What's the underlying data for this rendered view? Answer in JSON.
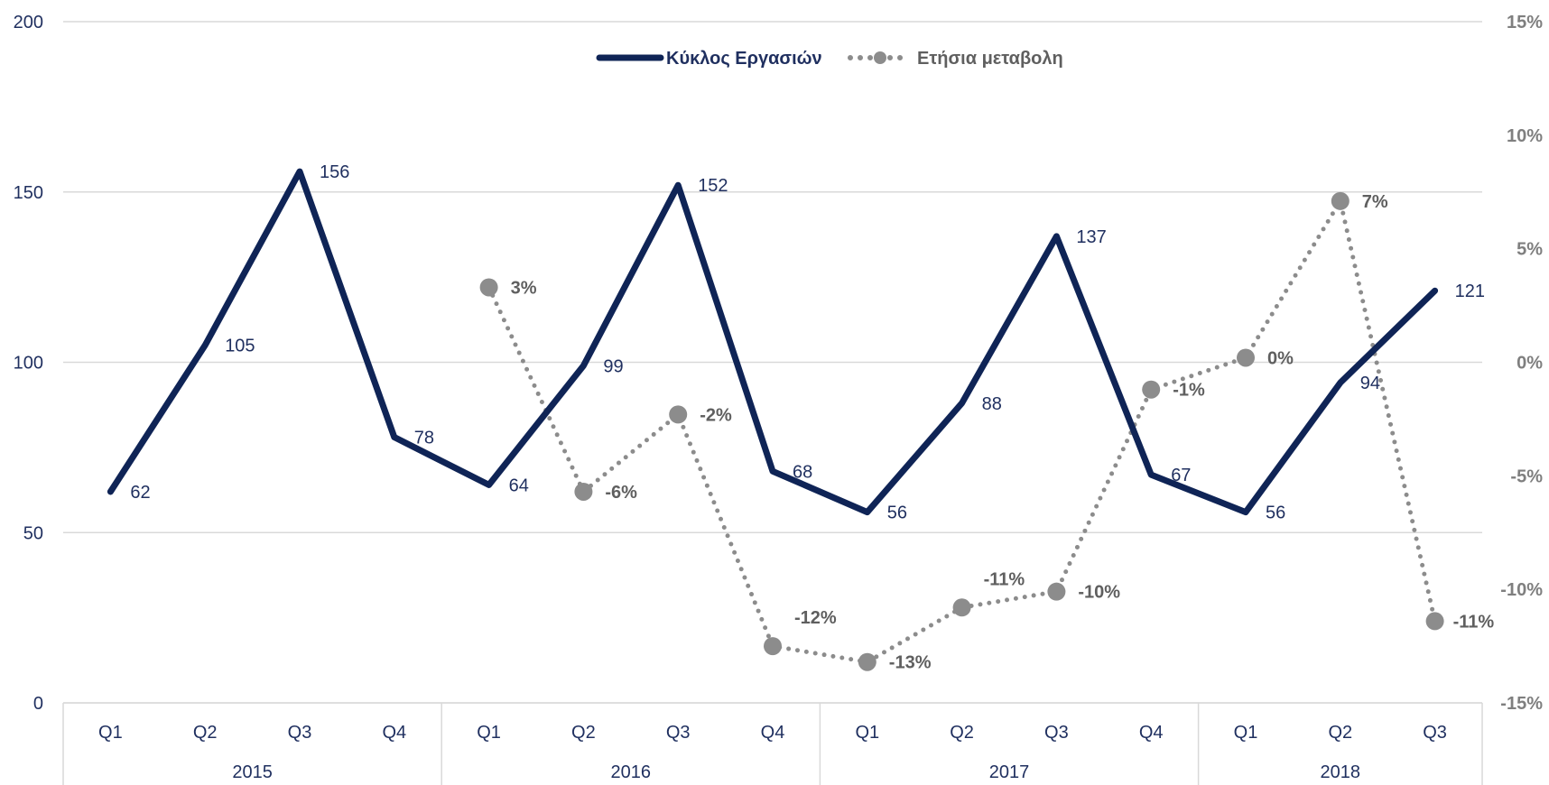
{
  "chart_data": {
    "type": "line",
    "categories": [
      "Q1",
      "Q2",
      "Q3",
      "Q4",
      "Q1",
      "Q2",
      "Q3",
      "Q4",
      "Q1",
      "Q2",
      "Q3",
      "Q4",
      "Q1",
      "Q2",
      "Q3"
    ],
    "years": [
      {
        "label": "2015",
        "quarters": 4
      },
      {
        "label": "2016",
        "quarters": 4
      },
      {
        "label": "2017",
        "quarters": 4
      },
      {
        "label": "2018",
        "quarters": 3
      }
    ],
    "series": [
      {
        "name": "Κύκλος Εργασιών",
        "axis": "left",
        "style": "solid",
        "color": "#0f2456",
        "values": [
          62,
          105,
          156,
          78,
          64,
          99,
          152,
          68,
          56,
          88,
          137,
          67,
          56,
          94,
          121
        ],
        "labels": [
          "62",
          "105",
          "156",
          "78",
          "64",
          "99",
          "152",
          "68",
          "56",
          "88",
          "137",
          "67",
          "56",
          "94",
          "121"
        ]
      },
      {
        "name": "Ετήσια μεταβολη",
        "axis": "right",
        "style": "dotted-markers",
        "color": "#8c8c8c",
        "values": [
          null,
          null,
          null,
          null,
          3.3,
          -5.7,
          -2.3,
          -12.5,
          -13.2,
          -10.8,
          -10.1,
          -1.2,
          0.2,
          7.1,
          -11.4
        ],
        "labels": [
          null,
          null,
          null,
          null,
          "3%",
          "-6%",
          "-2%",
          "-12%",
          "-13%",
          "-11%",
          "-10%",
          "-1%",
          "0%",
          "7%",
          "-11%"
        ]
      }
    ],
    "y_left": {
      "min": 0,
      "max": 200,
      "ticks": [
        "0",
        "50",
        "100",
        "150",
        "200"
      ]
    },
    "y_right": {
      "min": -15,
      "max": 15,
      "ticks": [
        "-15%",
        "-10%",
        "-5%",
        "0%",
        "5%",
        "10%",
        "15%"
      ]
    },
    "grid": true,
    "legend": "top-center",
    "title": "",
    "xlabel": "",
    "ylabel": ""
  }
}
